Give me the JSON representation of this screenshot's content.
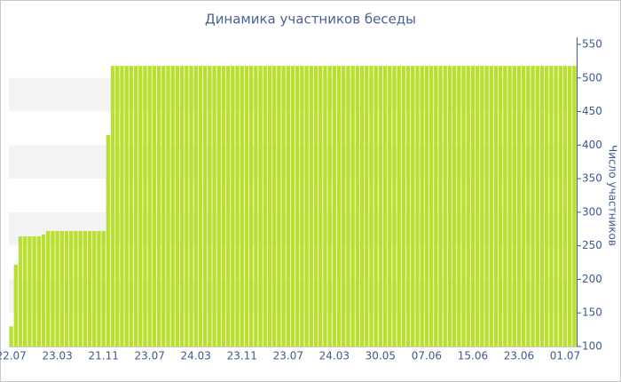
{
  "chart_data": {
    "type": "bar",
    "title": "Динамика участников беседы",
    "y_label": "Число участников",
    "categories": [
      "22.07",
      null,
      null,
      null,
      null,
      null,
      null,
      null,
      null,
      null,
      "23.03",
      null,
      null,
      null,
      null,
      null,
      null,
      null,
      null,
      null,
      "21.11",
      null,
      null,
      null,
      null,
      null,
      null,
      null,
      null,
      null,
      "23.07",
      null,
      null,
      null,
      null,
      null,
      null,
      null,
      null,
      null,
      "24.03",
      null,
      null,
      null,
      null,
      null,
      null,
      null,
      null,
      null,
      "23.11",
      null,
      null,
      null,
      null,
      null,
      null,
      null,
      null,
      null,
      "23.07",
      null,
      null,
      null,
      null,
      null,
      null,
      null,
      null,
      null,
      "24.03",
      null,
      null,
      null,
      null,
      null,
      null,
      null,
      null,
      null,
      "30.05",
      null,
      null,
      null,
      null,
      null,
      null,
      null,
      null,
      null,
      "07.06",
      null,
      null,
      null,
      null,
      null,
      null,
      null,
      null,
      null,
      "15.06",
      null,
      null,
      null,
      null,
      null,
      null,
      null,
      null,
      null,
      "23.06",
      null,
      null,
      null,
      null,
      null,
      null,
      null,
      null,
      null,
      "01.07",
      null,
      null
    ],
    "values": [
      130,
      222,
      264,
      264,
      264,
      264,
      264,
      267,
      272,
      272,
      272,
      272,
      272,
      272,
      272,
      272,
      272,
      272,
      272,
      272,
      272,
      415,
      518,
      518,
      518,
      518,
      518,
      518,
      518,
      518,
      518,
      518,
      518,
      518,
      518,
      518,
      518,
      518,
      518,
      518,
      518,
      518,
      518,
      518,
      518,
      518,
      518,
      518,
      518,
      518,
      518,
      518,
      518,
      518,
      518,
      518,
      518,
      518,
      518,
      518,
      518,
      518,
      518,
      518,
      518,
      518,
      518,
      518,
      518,
      518,
      518,
      518,
      518,
      518,
      518,
      518,
      518,
      518,
      518,
      518,
      518,
      518,
      518,
      518,
      518,
      518,
      518,
      518,
      518,
      518,
      518,
      518,
      518,
      518,
      518,
      518,
      518,
      518,
      518,
      518,
      518,
      518,
      518,
      518,
      518,
      518,
      518,
      518,
      518,
      518,
      518,
      518,
      518,
      518,
      518,
      518,
      518,
      518,
      518,
      518,
      518,
      518,
      518
    ],
    "color": "#b9df2f",
    "ylim": [
      100,
      550
    ],
    "yticks": [
      100,
      150,
      200,
      250,
      300,
      350,
      400,
      450,
      500,
      550
    ],
    "grid": "bands",
    "y_axis_side": "right"
  }
}
